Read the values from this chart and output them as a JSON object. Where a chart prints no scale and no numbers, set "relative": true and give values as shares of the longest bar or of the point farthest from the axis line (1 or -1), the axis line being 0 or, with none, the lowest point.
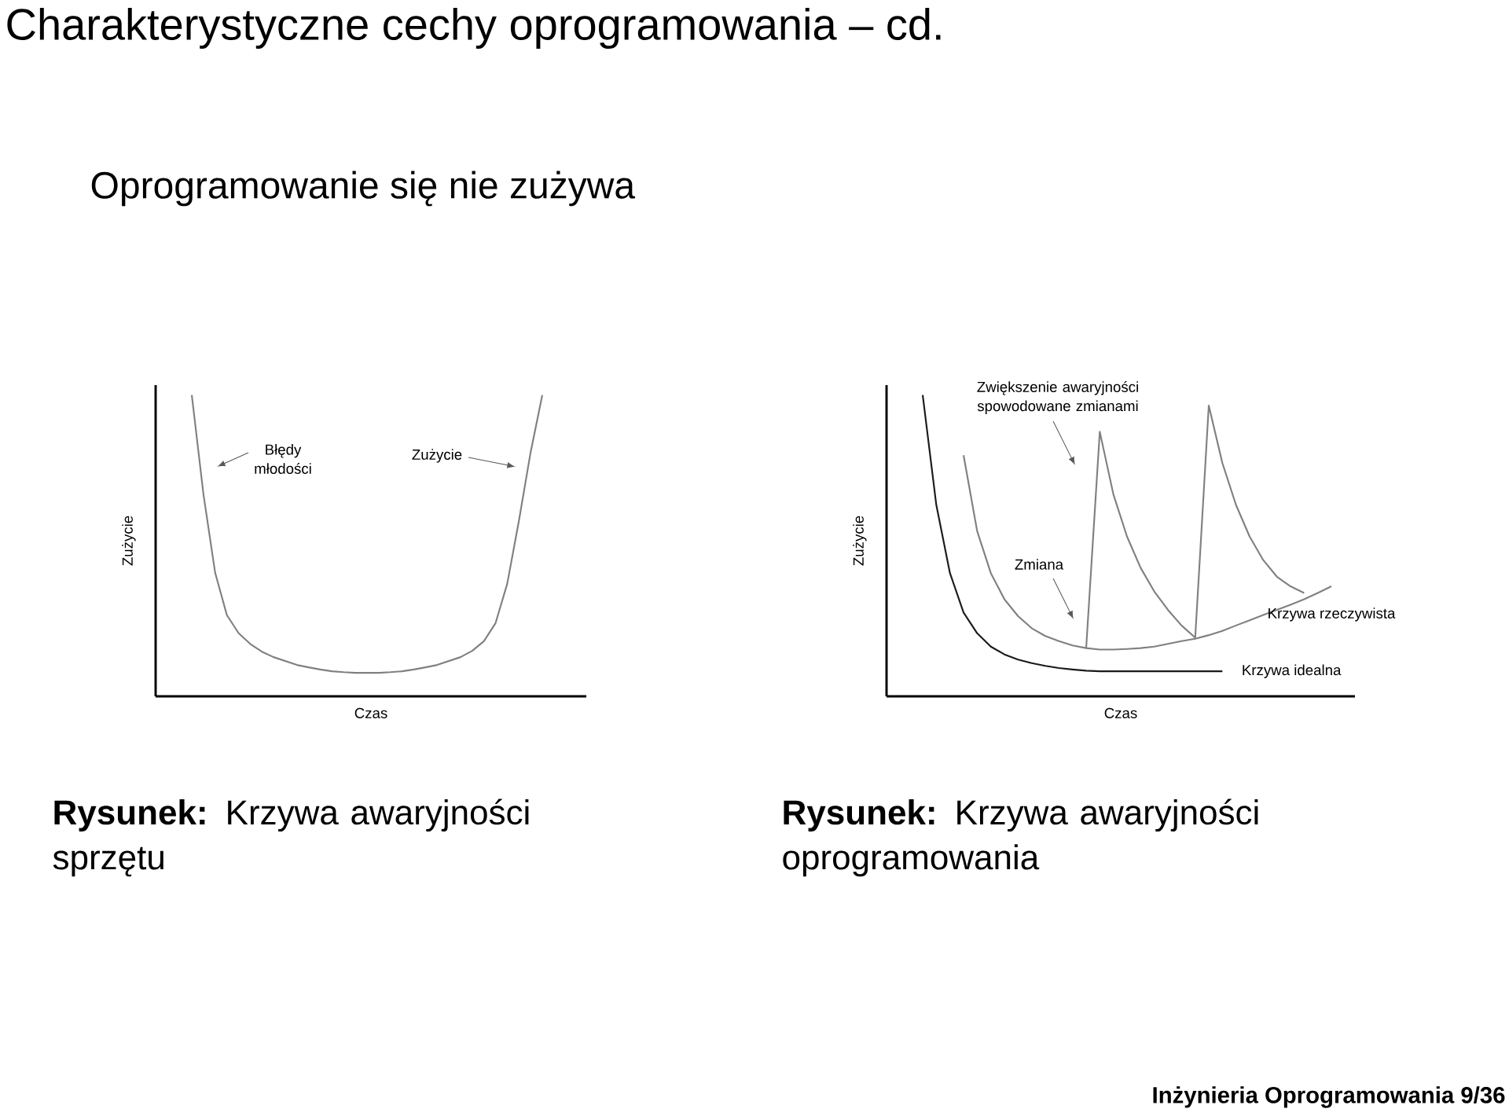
{
  "chart_data": [
    {
      "type": "line",
      "title": "Charakterystyczne cechy oprogramowania – cd.",
      "subtitle": "Oprogramowanie się nie zużywa",
      "xlabel": "Czas",
      "ylabel": "Zużycie",
      "relative": true,
      "categories": [
        null,
        null,
        null,
        null,
        null,
        null,
        null,
        null,
        null,
        null,
        null,
        null,
        null,
        null,
        null,
        null,
        null,
        null,
        null,
        null,
        null,
        null,
        null,
        null,
        null,
        null,
        null,
        null,
        null,
        null,
        null
      ],
      "series": [
        {
          "color": "#808080",
          "values": [
            1.0,
            0.67,
            0.41,
            0.27,
            0.21,
            0.174,
            0.148,
            0.13,
            0.117,
            0.104,
            0.096,
            0.089,
            0.083,
            0.08,
            0.078,
            0.078,
            0.078,
            0.08,
            0.083,
            0.089,
            0.096,
            0.104,
            0.117,
            0.13,
            0.151,
            0.183,
            0.243,
            0.374,
            0.583,
            0.81,
            1.0
          ]
        }
      ],
      "annotations": [
        "Błędy młodości",
        "Zużycie",
        "**Rysunek:** Krzywa awaryjności sprzętu"
      ]
    },
    {
      "type": "line",
      "xlabel": "Czas",
      "ylabel": "Zużycie",
      "relative": true,
      "categories": [
        null,
        null,
        null,
        null,
        null,
        null,
        null,
        null,
        null,
        null,
        null,
        null,
        null,
        null,
        null,
        null,
        null,
        null,
        null,
        null,
        null,
        null,
        null,
        null,
        null,
        null,
        null,
        null,
        null,
        null,
        null
      ],
      "series": [
        {
          "name": "Krzywa idealna",
          "color": "#1a1a1a",
          "values": [
            1.0,
            0.635,
            0.409,
            0.278,
            0.209,
            0.165,
            0.139,
            0.122,
            0.11,
            0.101,
            0.094,
            0.089,
            0.085,
            0.083,
            0.083,
            0.083,
            0.083,
            0.083,
            0.083,
            0.083,
            0.083,
            0.083,
            0.083,
            null,
            null,
            null,
            null,
            null,
            null,
            null,
            null
          ]
        },
        {
          "name": "Krzywa rzeczywista",
          "color": "#808080",
          "values": [
            null,
            null,
            null,
            0.8,
            0.548,
            0.409,
            0.322,
            0.266,
            0.226,
            0.2,
            0.183,
            0.169,
            0.16,
            0.155,
            0.155,
            0.157,
            0.16,
            0.165,
            0.174,
            0.183,
            0.191,
            0.203,
            0.217,
            0.235,
            0.252,
            0.27,
            0.287,
            0.304,
            0.322,
            0.343,
            0.365
          ]
        },
        {
          "color": "#808080",
          "values": [
            null,
            null,
            null,
            null,
            null,
            null,
            null,
            null,
            null,
            null,
            null,
            null,
            0.16,
            0.878,
            0.67,
            0.53,
            0.426,
            0.348,
            0.287,
            0.235,
            0.195,
            null,
            null,
            null,
            null,
            null,
            null,
            null,
            null,
            null,
            null
          ]
        },
        {
          "color": "#808080",
          "values": [
            null,
            null,
            null,
            null,
            null,
            null,
            null,
            null,
            null,
            null,
            null,
            null,
            null,
            null,
            null,
            null,
            null,
            null,
            null,
            null,
            0.191,
            0.965,
            0.774,
            0.635,
            0.53,
            0.452,
            0.397,
            0.365,
            0.343,
            null,
            null
          ]
        }
      ],
      "annotations": [
        "Zwiększenie awaryjności spowodowane zmianami",
        "Zmiana",
        "**Rysunek:** Krzywa awaryjności oprogramowania",
        "Inżynieria Oprogramowania 9/36"
      ]
    }
  ]
}
